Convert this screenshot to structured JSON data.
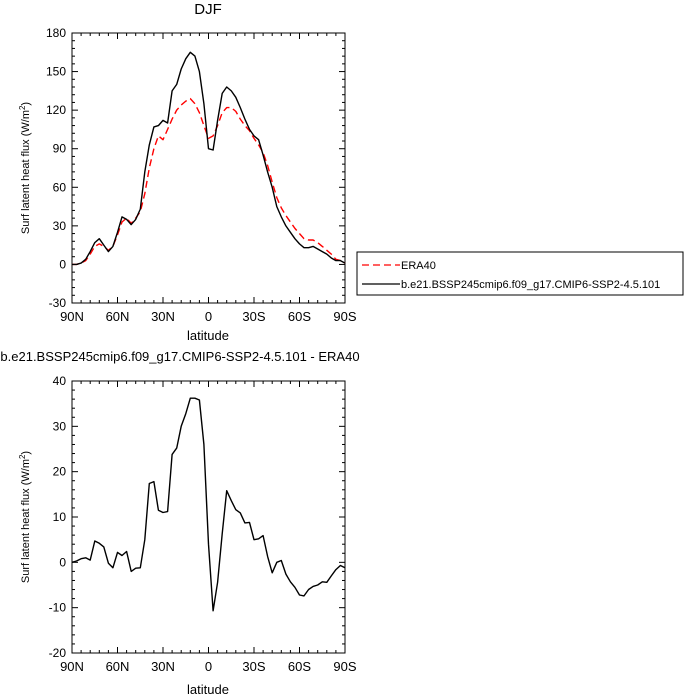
{
  "chart_data": [
    {
      "type": "line",
      "title": "DJF",
      "xlabel": "latitude",
      "ylabel": "Surf latent heat flux (W/m",
      "ylabel_sup": "2",
      "ylabel_close": ")",
      "xlim": [
        90,
        -90
      ],
      "ylim": [
        -30,
        180
      ],
      "x_ticks": [
        90,
        60,
        30,
        0,
        -30,
        -60,
        -90
      ],
      "x_tick_labels": [
        "90N",
        "60N",
        "30N",
        "0",
        "30S",
        "60S",
        "90S"
      ],
      "y_ticks": [
        -30,
        0,
        30,
        60,
        90,
        120,
        150,
        180
      ],
      "y_tick_labels": [
        "-30",
        "0",
        "30",
        "60",
        "90",
        "120",
        "150",
        "180"
      ],
      "legend_position": "right",
      "series": [
        {
          "name": "ERA40",
          "color": "#ff0000",
          "dash": "dashed",
          "x": [
            90,
            87,
            84,
            81,
            78,
            75,
            72,
            69,
            66,
            63,
            60,
            57,
            54,
            51,
            48,
            45,
            42,
            39,
            36,
            33,
            30,
            27,
            24,
            21,
            18,
            15,
            12,
            9,
            6,
            3,
            0,
            -3,
            -6,
            -9,
            -12,
            -15,
            -18,
            -21,
            -24,
            -27,
            -30,
            -33,
            -36,
            -39,
            -42,
            -45,
            -48,
            -51,
            -54,
            -57,
            -60,
            -63,
            -66,
            -69,
            -72,
            -75,
            -78,
            -81,
            -84,
            -87,
            -90
          ],
          "y": [
            0,
            0,
            1,
            3,
            8,
            14,
            16,
            14,
            11,
            14,
            23,
            33,
            36,
            32,
            36,
            41,
            55,
            75,
            90,
            100,
            97,
            105,
            113,
            120,
            124,
            127,
            129,
            125,
            118,
            108,
            98,
            100,
            108,
            118,
            122,
            122,
            119,
            113,
            108,
            104,
            98,
            93,
            87,
            77,
            64,
            52,
            44,
            38,
            33,
            28,
            24,
            20,
            19,
            19,
            17,
            14,
            11,
            8,
            4,
            3,
            1
          ]
        },
        {
          "name": "b.e21.BSSP245cmip6.f09_g17.CMIP6-SSP2-4.5.101",
          "color": "#000000",
          "dash": "solid",
          "x": [
            90,
            87,
            84,
            81,
            78,
            75,
            72,
            69,
            66,
            63,
            60,
            57,
            54,
            51,
            48,
            45,
            42,
            39,
            36,
            33,
            30,
            27,
            24,
            21,
            18,
            15,
            12,
            9,
            6,
            3,
            0,
            -3,
            -6,
            -9,
            -12,
            -15,
            -18,
            -21,
            -24,
            -27,
            -30,
            -33,
            -36,
            -39,
            -42,
            -45,
            -48,
            -51,
            -54,
            -57,
            -60,
            -63,
            -66,
            -69,
            -72,
            -75,
            -78,
            -81,
            -84,
            -87,
            -90
          ],
          "y": [
            0,
            0,
            1,
            4,
            10,
            17,
            20,
            15,
            10,
            14,
            25,
            37,
            35,
            31,
            35,
            43,
            72,
            93,
            107,
            108,
            112,
            110,
            135,
            140,
            152,
            160,
            165,
            162,
            150,
            125,
            90,
            89,
            112,
            133,
            138,
            135,
            130,
            122,
            113,
            105,
            100,
            97,
            85,
            72,
            60,
            45,
            37,
            30,
            25,
            20,
            16,
            13,
            13,
            14,
            12,
            10,
            8,
            5,
            3,
            3,
            1
          ]
        }
      ]
    },
    {
      "type": "line",
      "title": "b.e21.BSSP245cmip6.f09_g17.CMIP6-SSP2-4.5.101 - ERA40",
      "xlabel": "latitude",
      "ylabel": "Surf latent heat flux (W/m",
      "ylabel_sup": "2",
      "ylabel_close": ")",
      "xlim": [
        90,
        -90
      ],
      "ylim": [
        -20,
        40
      ],
      "x_ticks": [
        90,
        60,
        30,
        0,
        -30,
        -60,
        -90
      ],
      "x_tick_labels": [
        "90N",
        "60N",
        "30N",
        "0",
        "30S",
        "60S",
        "90S"
      ],
      "y_ticks": [
        -20,
        -10,
        0,
        10,
        20,
        30,
        40
      ],
      "y_tick_labels": [
        "-20",
        "-10",
        "0",
        "10",
        "20",
        "30",
        "40"
      ],
      "series": [
        {
          "color": "#000000",
          "dash": "solid",
          "x": [
            90,
            87,
            84,
            81,
            78,
            75,
            72,
            69,
            66,
            63,
            60,
            57,
            54,
            51,
            48,
            45,
            42,
            39,
            36,
            33,
            30,
            27,
            24,
            21,
            18,
            15,
            12,
            9,
            6,
            3,
            0,
            -3,
            -6,
            -9,
            -12,
            -15,
            -18,
            -21,
            -24,
            -27,
            -30,
            -33,
            -36,
            -39,
            -42,
            -45,
            -48,
            -51,
            -54,
            -57,
            -60,
            -63,
            -66,
            -69,
            -72,
            -75,
            -78,
            -81,
            -84,
            -87,
            -90
          ],
          "y": [
            0,
            0.3,
            0.8,
            1,
            0.5,
            4.7,
            4.2,
            3.4,
            -0.2,
            -1.2,
            2.2,
            1.5,
            2.4,
            -2,
            -1.3,
            -1.2,
            5,
            17.4,
            17.8,
            11.5,
            11,
            11.2,
            23.8,
            25.2,
            30,
            32.8,
            36.2,
            36.2,
            35.8,
            26,
            4,
            -10.7,
            -4.4,
            6.3,
            15.8,
            13.6,
            11.6,
            10.9,
            8.7,
            8.8,
            5,
            5.2,
            5.9,
            1.3,
            -2.3,
            0,
            0.4,
            -2.6,
            -4.3,
            -5.5,
            -7.2,
            -7.4,
            -6,
            -5.3,
            -5,
            -4.3,
            -4.4,
            -3,
            -1.6,
            -0.7,
            -1.2
          ]
        }
      ]
    }
  ]
}
